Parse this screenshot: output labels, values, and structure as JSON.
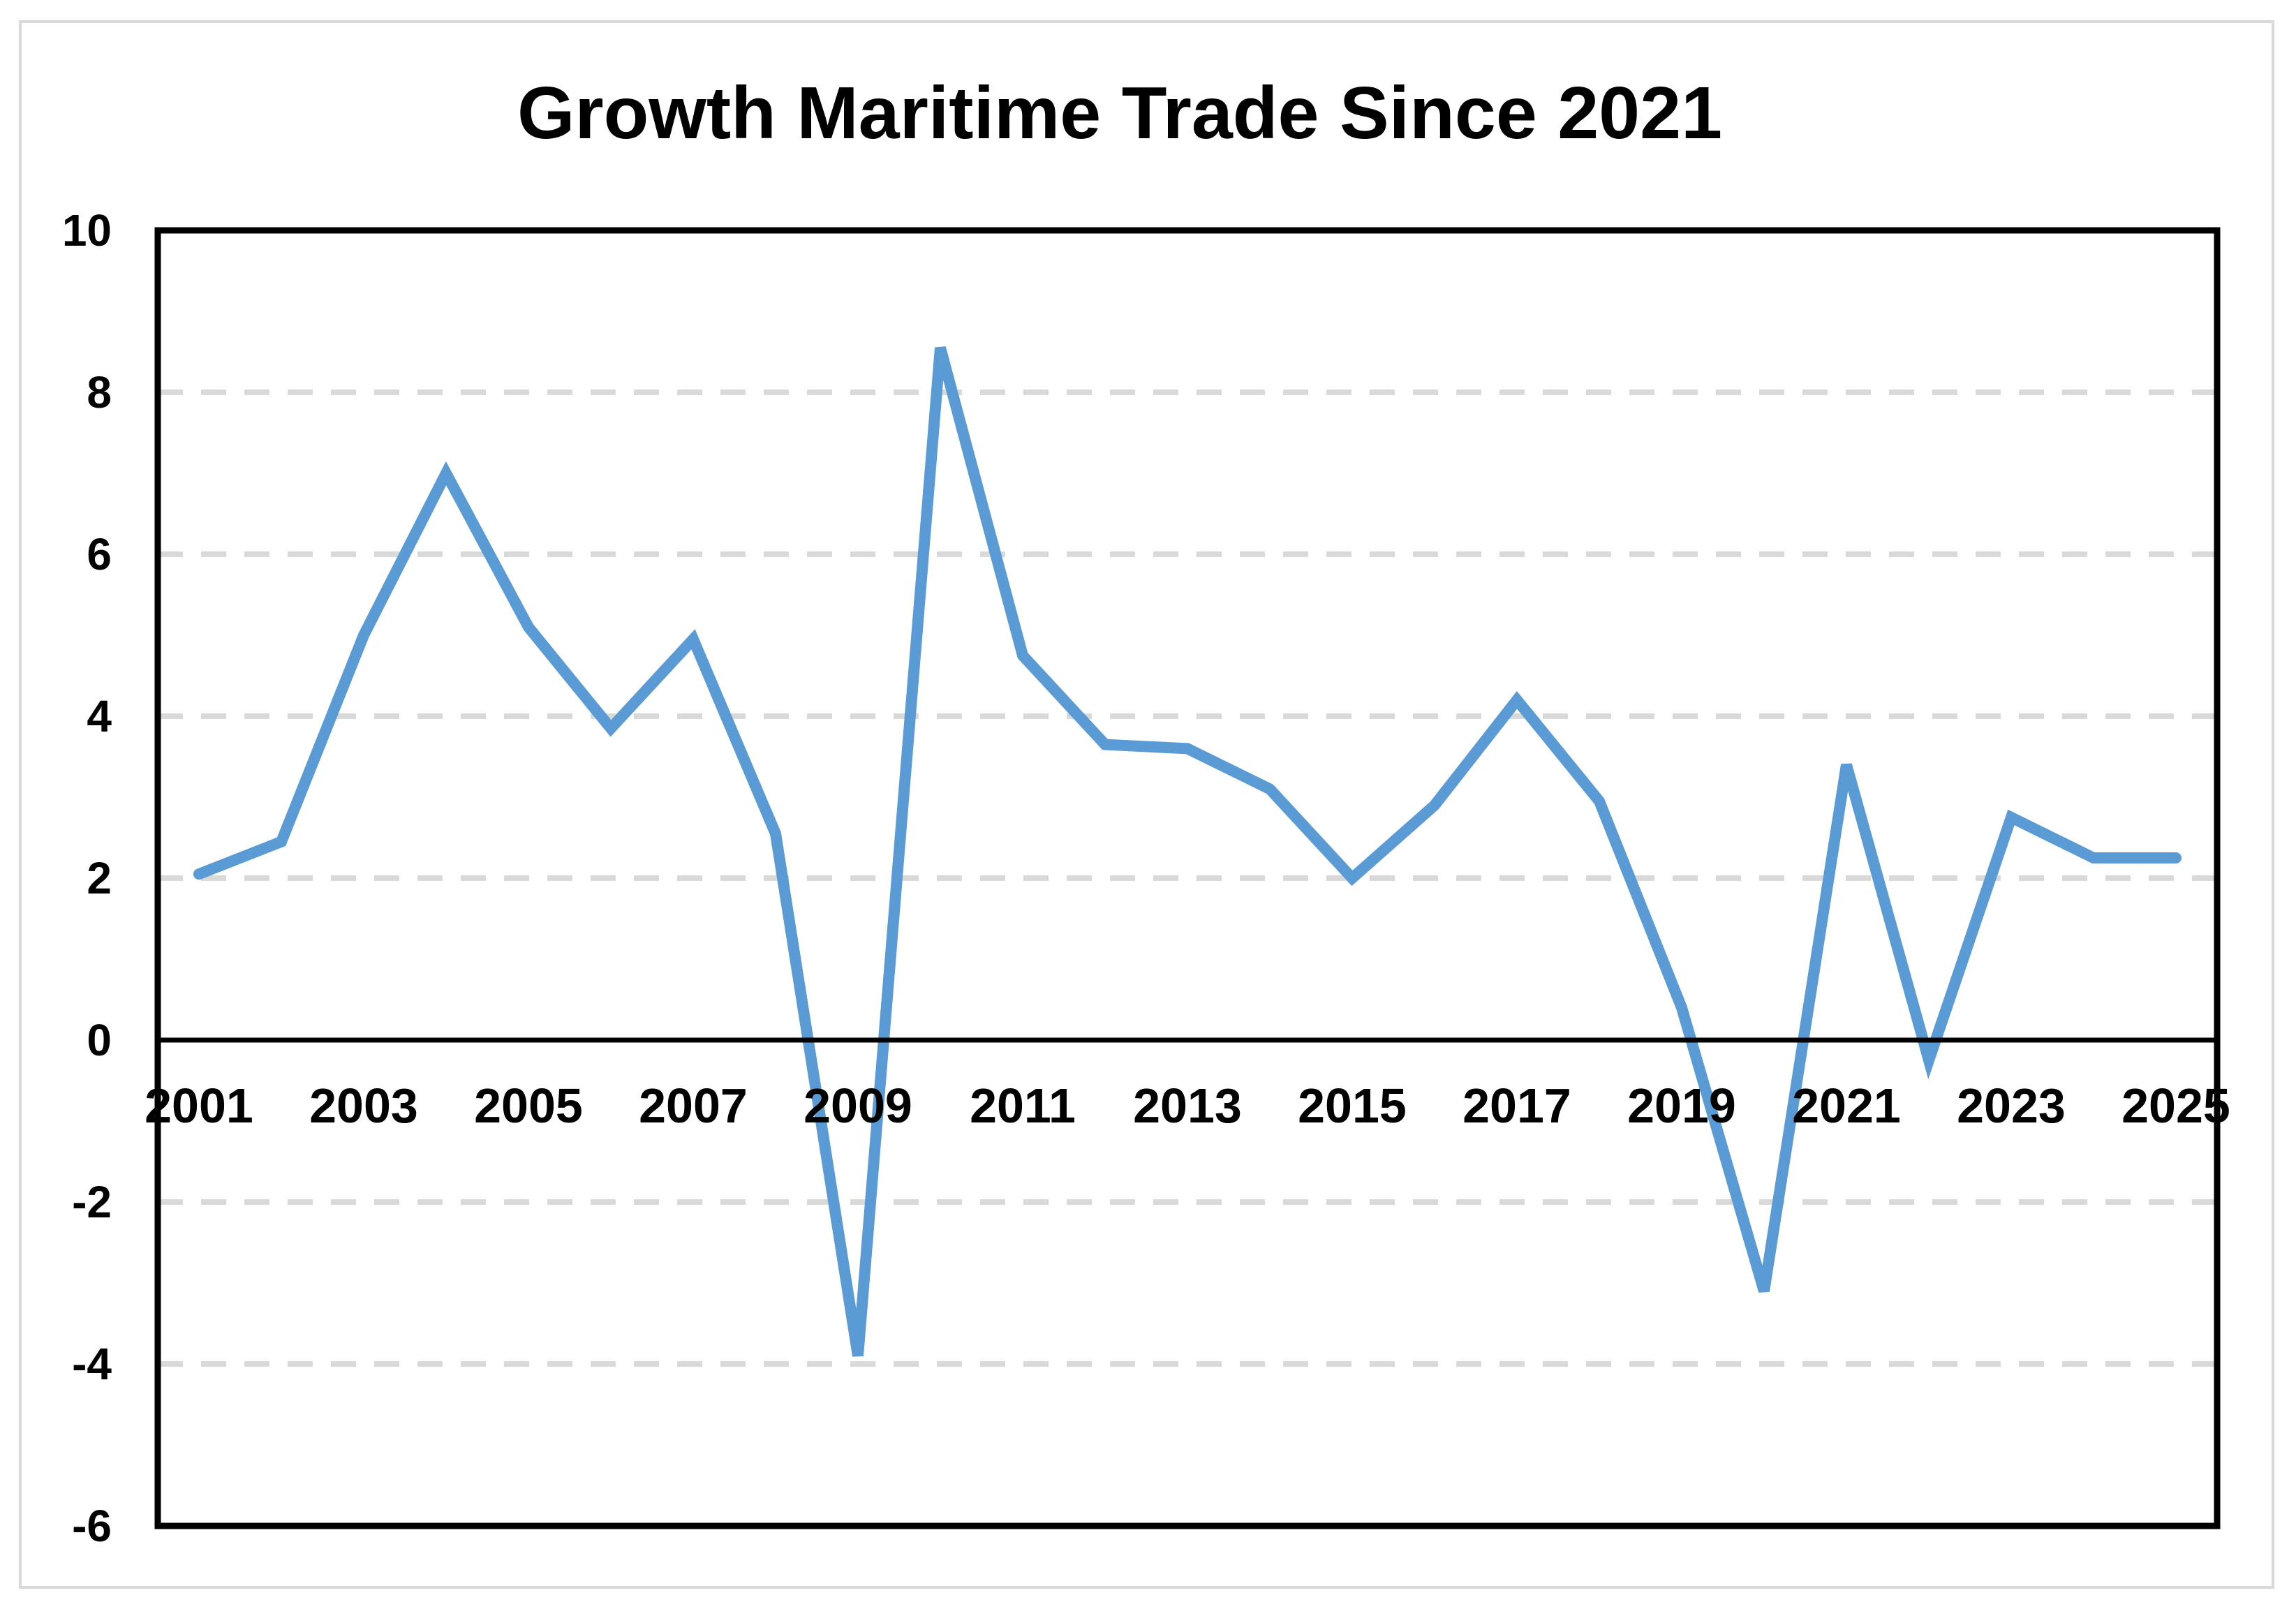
{
  "chart_data": {
    "type": "line",
    "title": "Growth Maritime Trade Since 2021",
    "xlabel": "",
    "ylabel": "",
    "ylim": [
      -6,
      10
    ],
    "yticks": [
      -6,
      -4,
      -2,
      0,
      2,
      4,
      6,
      8,
      10
    ],
    "ytick_labels": [
      "-6",
      "-4",
      "-2",
      "0",
      "2",
      "4",
      "6",
      "8",
      "10"
    ],
    "xtick_labels": [
      "2001",
      "2003",
      "2005",
      "2007",
      "2009",
      "2011",
      "2013",
      "2015",
      "2017",
      "2019",
      "2021",
      "2023",
      "2025"
    ],
    "grid": "horizontal dashed",
    "legend": "none",
    "x": [
      2001,
      2002,
      2003,
      2004,
      2005,
      2006,
      2007,
      2008,
      2009,
      2010,
      2011,
      2012,
      2013,
      2014,
      2015,
      2016,
      2017,
      2018,
      2019,
      2020,
      2021,
      2022,
      2023,
      2024,
      2025
    ],
    "series": [
      {
        "name": "Growth",
        "color": "#5b9bd5",
        "values": [
          2.05,
          2.45,
          5.0,
          7.0,
          5.1,
          3.85,
          4.95,
          2.55,
          -3.9,
          8.55,
          4.75,
          3.65,
          3.6,
          3.1,
          2.0,
          2.9,
          4.2,
          2.95,
          0.4,
          -3.1,
          3.4,
          -0.25,
          2.75,
          2.25,
          2.25
        ]
      }
    ]
  }
}
